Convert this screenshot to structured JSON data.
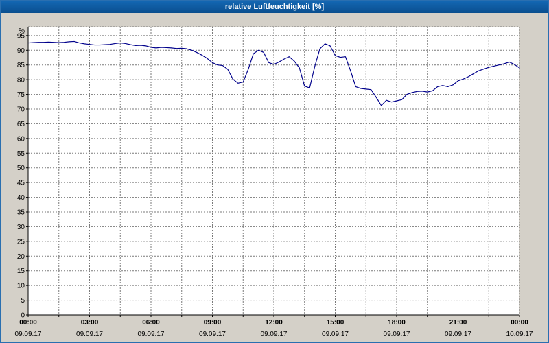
{
  "window": {
    "title": "relative Luftfeuchtigkeit [%]"
  },
  "colors": {
    "titlebar": "#0b5ca8",
    "window_background": "#d4d0c8",
    "plot_background": "#ffffff",
    "line": "#00008b",
    "grid": "#7a7a7a",
    "axis": "#000000",
    "label_text": "#000000"
  },
  "chart_data": {
    "type": "line",
    "title": "relative Luftfeuchtigkeit [%]",
    "ylabel": "%",
    "xlabel": "",
    "grid": "dashed",
    "legend": "none",
    "ylim": [
      0,
      98
    ],
    "x_range_hours": [
      0,
      24
    ],
    "y_ticks": [
      0,
      5,
      10,
      15,
      20,
      25,
      30,
      35,
      40,
      45,
      50,
      55,
      60,
      65,
      70,
      75,
      80,
      85,
      90,
      95
    ],
    "x_major_ticks_hours": [
      0,
      3,
      6,
      9,
      12,
      15,
      18,
      21,
      24
    ],
    "x_minor_step_hours": 1.5,
    "x_tick_labels": [
      "00:00",
      "03:00",
      "06:00",
      "09:00",
      "12:00",
      "15:00",
      "18:00",
      "21:00",
      "00:00"
    ],
    "x_date_labels": [
      "09.09.17",
      "09.09.17",
      "09.09.17",
      "09.09.17",
      "09.09.17",
      "09.09.17",
      "09.09.17",
      "09.09.17",
      "10.09.17"
    ],
    "series_name": "relative Luftfeuchtigkeit",
    "sample_start_hour": 0,
    "sample_step_hours": 0.25,
    "values": [
      92.5,
      92.6,
      92.7,
      92.7,
      92.8,
      92.7,
      92.6,
      92.7,
      92.9,
      93.0,
      92.5,
      92.2,
      92.0,
      91.8,
      91.8,
      91.9,
      92.0,
      92.3,
      92.5,
      92.3,
      91.9,
      91.6,
      91.7,
      91.5,
      91.0,
      90.8,
      91.0,
      90.9,
      90.8,
      90.6,
      90.7,
      90.5,
      90.0,
      89.2,
      88.3,
      87.2,
      85.8,
      85.0,
      84.8,
      83.5,
      80.2,
      78.8,
      79.2,
      83.5,
      88.8,
      90.0,
      89.3,
      85.8,
      85.2,
      86.0,
      87.0,
      87.8,
      86.3,
      84.0,
      77.8,
      77.2,
      84.5,
      90.5,
      92.2,
      91.5,
      88.2,
      87.6,
      87.8,
      83.0,
      77.6,
      77.0,
      76.8,
      76.6,
      74.0,
      71.2,
      73.0,
      72.4,
      72.8,
      73.2,
      75.0,
      75.6,
      76.0,
      76.1,
      75.8,
      76.2,
      77.6,
      78.0,
      77.6,
      78.2,
      79.6,
      80.2,
      81.0,
      82.0,
      83.0,
      83.6,
      84.2,
      84.6,
      85.0,
      85.4,
      86.0,
      85.2,
      84.0
    ]
  }
}
